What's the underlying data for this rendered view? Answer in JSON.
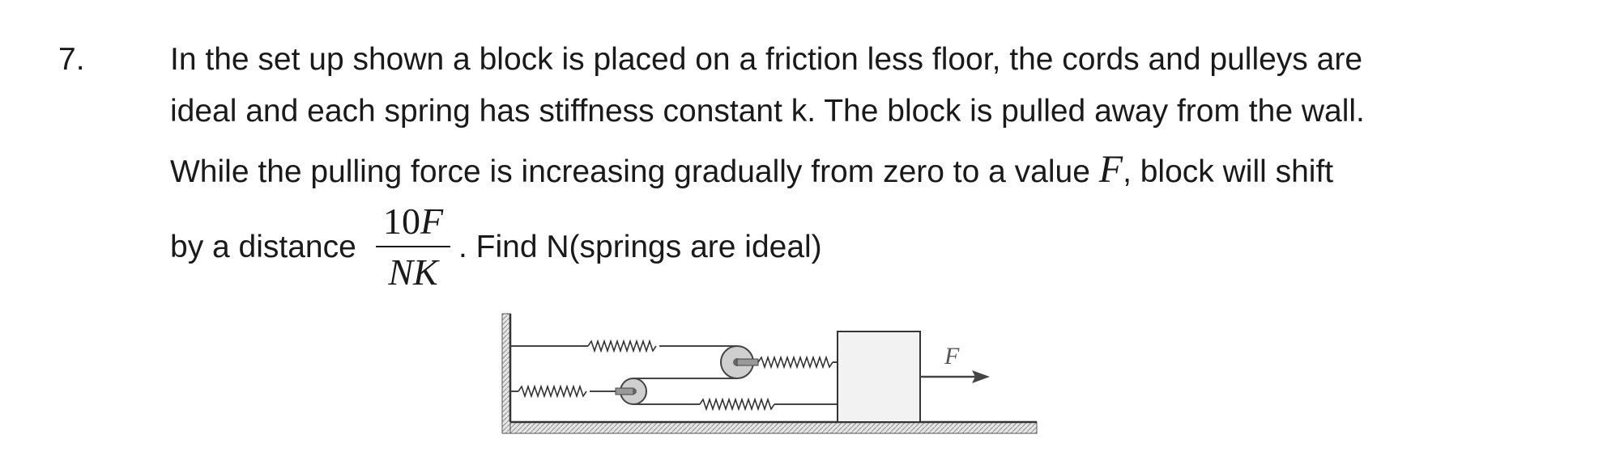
{
  "question": {
    "number": "7.",
    "line1": "In the set up shown  a block is placed on a friction less floor, the cords and pulleys are",
    "line2": "ideal and each spring has stiffness constant k. The block is pulled away from the wall.",
    "line3_before": "While the pulling force  is increasing   gradually from zero to a  value ",
    "line3_symbol": "F",
    "line3_after": ", block will shift",
    "line4_before": "by a distance ",
    "fraction_numerator_digits": "10",
    "fraction_numerator_var": "F",
    "fraction_denominator": "NK",
    "line4_after": ". Find N(springs are ideal)"
  },
  "figure": {
    "force_label": "F"
  }
}
